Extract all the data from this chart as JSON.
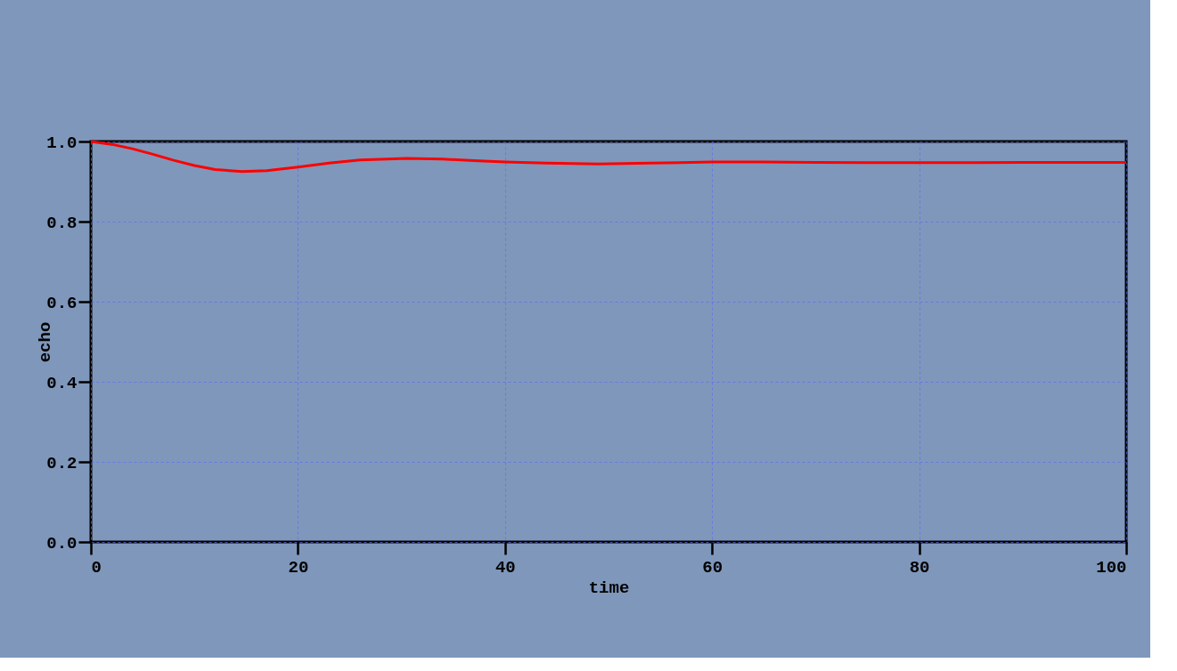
{
  "chart_data": {
    "type": "line",
    "xlabel": "time",
    "ylabel": "echo",
    "x": [
      0,
      2,
      4,
      6,
      8,
      10,
      12,
      14.6,
      17,
      20,
      23,
      26,
      30.5,
      34,
      37,
      40,
      44,
      49,
      54,
      60,
      65,
      70,
      75,
      80,
      85,
      90,
      95,
      100
    ],
    "series": [
      {
        "color": "#ff0000",
        "values": [
          1.0,
          0.993,
          0.982,
          0.968,
          0.953,
          0.94,
          0.93,
          0.925,
          0.927,
          0.936,
          0.946,
          0.954,
          0.958,
          0.956,
          0.952,
          0.949,
          0.946,
          0.944,
          0.946,
          0.949,
          0.949,
          0.948,
          0.947,
          0.947,
          0.947,
          0.948,
          0.948,
          0.948
        ]
      }
    ],
    "xlim": [
      0,
      100
    ],
    "ylim": [
      0,
      1.0
    ],
    "xticks": [
      0,
      20,
      40,
      60,
      80,
      100
    ],
    "yticks": [
      {
        "value": 0,
        "label": "0.0"
      },
      0.2,
      0.4,
      0.6,
      0.8,
      {
        "value": 1.0,
        "label": "1.0"
      }
    ],
    "grid": true,
    "line_style": "solid",
    "marker": "none"
  }
}
